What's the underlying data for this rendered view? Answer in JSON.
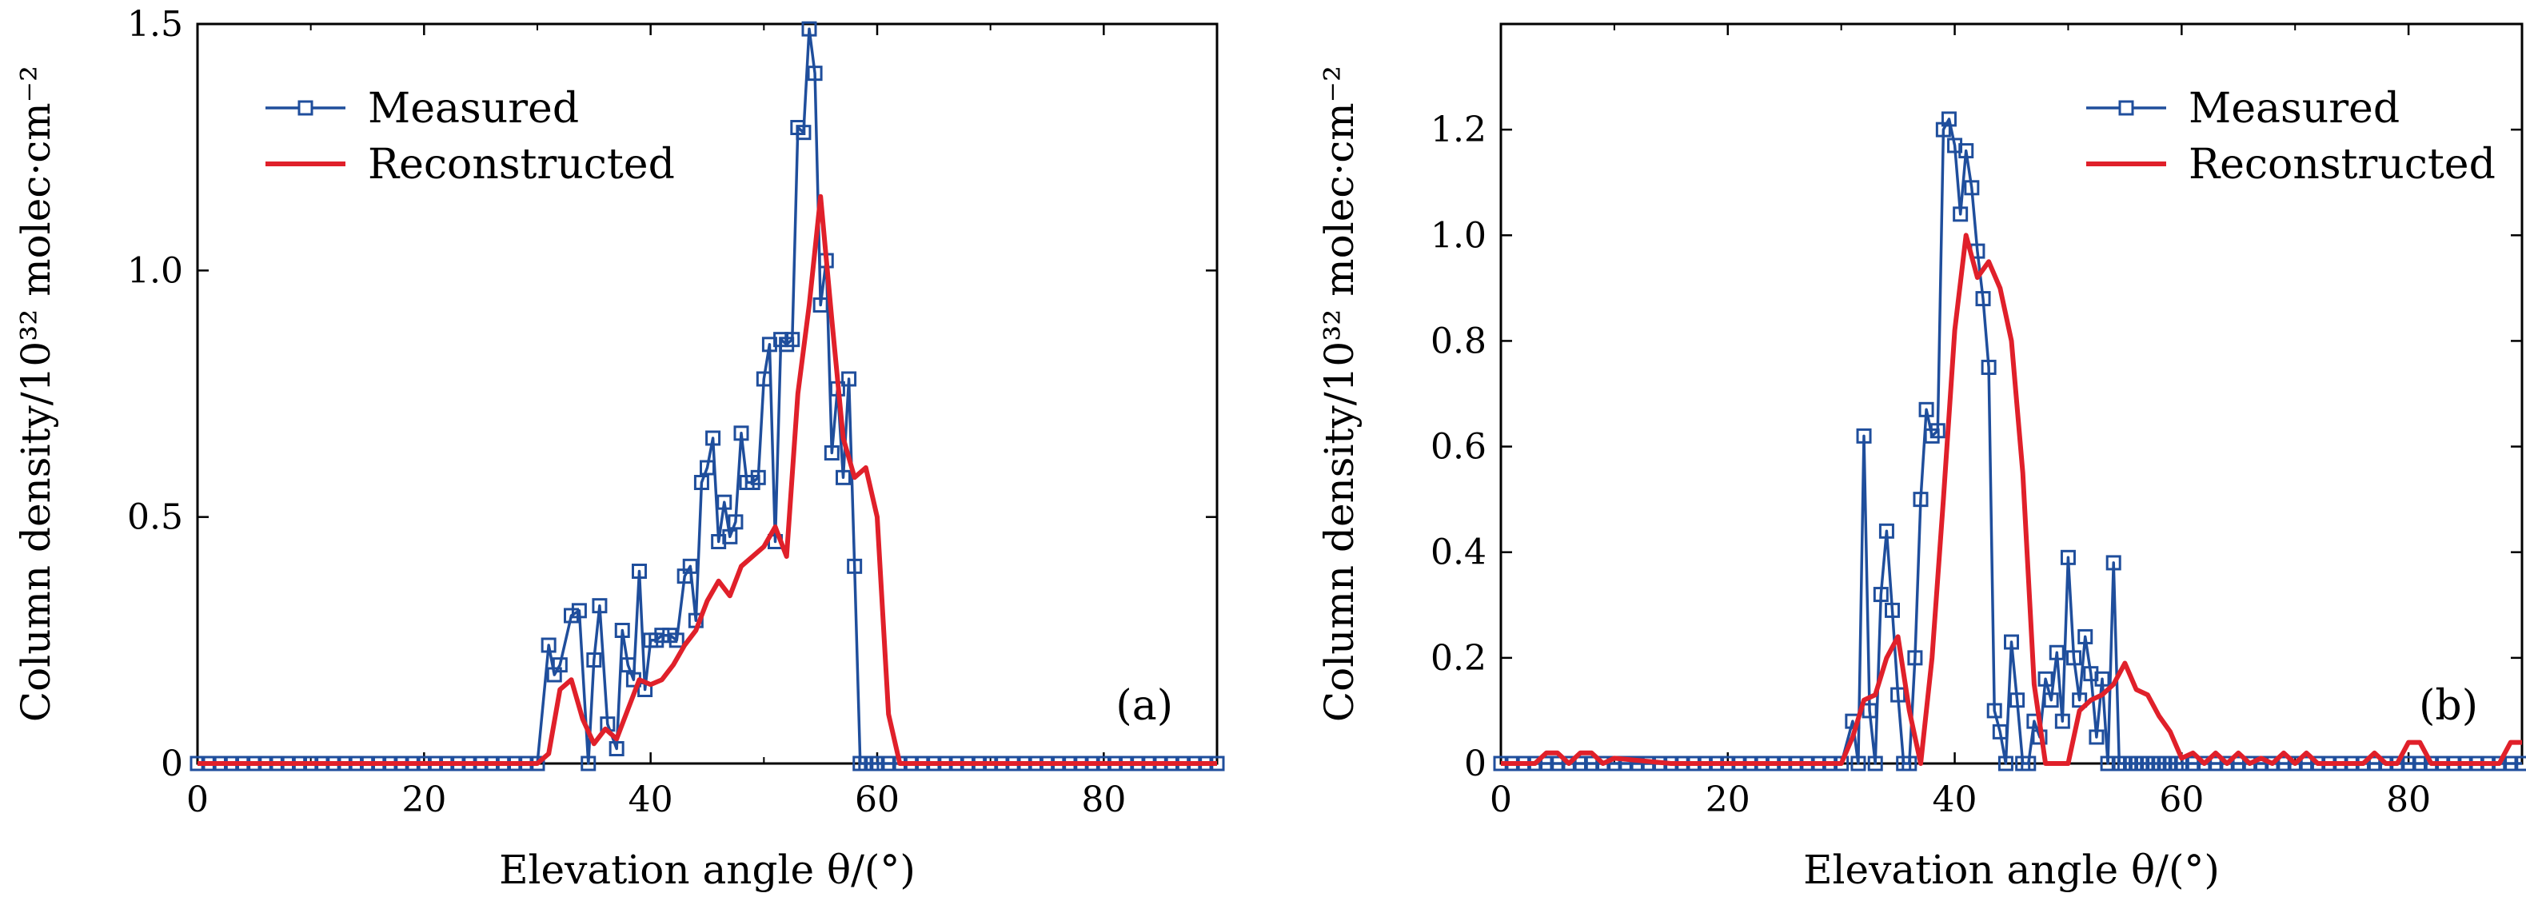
{
  "chart_data": [
    {
      "id": "a",
      "type": "line",
      "panel_label": "(a)",
      "xlabel": "Elevation angle θ/(°)",
      "ylabel": "Column density/10³² molec·cm⁻²",
      "xlim": [
        0,
        90
      ],
      "ylim": [
        0,
        1.5
      ],
      "xticks": [
        0,
        20,
        40,
        60,
        80
      ],
      "xtick_labels": [
        "0",
        "20",
        "40",
        "60",
        "80"
      ],
      "yticks": [
        0,
        0.5,
        1.0,
        1.5
      ],
      "ytick_labels": [
        "0",
        "0.5",
        "1.0",
        "1.5"
      ],
      "legend": {
        "position": "top-left"
      },
      "series": [
        {
          "name": "Measured",
          "color": "#1f4e9c",
          "marker": "square",
          "x": [
            0,
            1,
            2,
            3,
            4,
            5,
            6,
            7,
            8,
            9,
            10,
            11,
            12,
            13,
            14,
            15,
            16,
            17,
            18,
            19,
            20,
            21,
            22,
            23,
            24,
            25,
            26,
            27,
            28,
            29,
            30,
            31,
            31.5,
            32,
            33,
            33.7,
            34.5,
            35,
            35.5,
            36.2,
            37,
            37.5,
            38,
            38.5,
            39,
            39.5,
            40,
            40.5,
            41,
            41.7,
            42.3,
            43,
            43.5,
            44,
            44.5,
            45,
            45.5,
            46,
            46.5,
            47,
            47.5,
            48,
            48.5,
            49,
            49.5,
            50,
            50.5,
            51,
            51.5,
            52,
            52.5,
            53,
            53.5,
            54,
            54.5,
            55,
            55.5,
            56,
            56.5,
            57,
            57.5,
            58,
            58.5,
            59,
            59.5,
            60,
            61,
            62,
            63,
            64,
            65,
            66,
            67,
            68,
            69,
            70,
            71,
            72,
            73,
            74,
            75,
            76,
            77,
            78,
            79,
            80,
            81,
            82,
            83,
            84,
            85,
            86,
            87,
            88,
            89,
            90
          ],
          "y": [
            0,
            0,
            0,
            0,
            0,
            0,
            0,
            0,
            0,
            0,
            0,
            0,
            0,
            0,
            0,
            0,
            0,
            0,
            0,
            0,
            0,
            0,
            0,
            0,
            0,
            0,
            0,
            0,
            0,
            0,
            0,
            0.24,
            0.18,
            0.2,
            0.3,
            0.31,
            0.0,
            0.21,
            0.32,
            0.08,
            0.03,
            0.27,
            0.2,
            0.17,
            0.39,
            0.15,
            0.25,
            0.25,
            0.26,
            0.26,
            0.25,
            0.38,
            0.4,
            0.29,
            0.57,
            0.6,
            0.66,
            0.45,
            0.53,
            0.46,
            0.49,
            0.67,
            0.57,
            0.57,
            0.58,
            0.78,
            0.85,
            0.45,
            0.86,
            0.85,
            0.86,
            1.29,
            1.28,
            1.49,
            1.4,
            0.93,
            1.02,
            0.63,
            0.76,
            0.58,
            0.78,
            0.4,
            0,
            0,
            0,
            0,
            0,
            0,
            0,
            0,
            0,
            0,
            0,
            0,
            0,
            0,
            0,
            0,
            0,
            0,
            0,
            0,
            0,
            0,
            0,
            0,
            0,
            0,
            0,
            0,
            0,
            0,
            0,
            0,
            0,
            0
          ]
        },
        {
          "name": "Reconstructed",
          "color": "#e0202a",
          "marker": "none",
          "x": [
            0,
            10,
            20,
            30,
            31,
            32,
            33,
            34,
            35,
            36,
            37,
            38,
            39,
            40,
            41,
            42,
            43,
            44,
            45,
            46,
            47,
            48,
            49,
            50,
            51,
            52,
            53,
            54,
            55,
            56,
            57,
            58,
            59,
            60,
            61,
            62,
            70,
            80,
            90
          ],
          "y": [
            0,
            0,
            0,
            0,
            0.02,
            0.15,
            0.17,
            0.09,
            0.04,
            0.07,
            0.05,
            0.11,
            0.17,
            0.16,
            0.17,
            0.2,
            0.24,
            0.27,
            0.33,
            0.37,
            0.34,
            0.4,
            0.42,
            0.44,
            0.48,
            0.42,
            0.75,
            0.93,
            1.15,
            0.9,
            0.66,
            0.58,
            0.6,
            0.5,
            0.1,
            0,
            0,
            0,
            0
          ]
        }
      ]
    },
    {
      "id": "b",
      "type": "line",
      "panel_label": "(b)",
      "xlabel": "Elevation angle θ/(°)",
      "ylabel": "Column density/10³² molec·cm⁻²",
      "xlim": [
        0,
        90
      ],
      "ylim": [
        0,
        1.4
      ],
      "xticks": [
        0,
        20,
        40,
        60,
        80
      ],
      "xtick_labels": [
        "0",
        "20",
        "40",
        "60",
        "80"
      ],
      "yticks": [
        0,
        0.2,
        0.4,
        0.6,
        0.8,
        1.0,
        1.2
      ],
      "ytick_labels": [
        "0",
        "0.2",
        "0.4",
        "0.6",
        "0.8",
        "1.0",
        "1.2"
      ],
      "legend": {
        "position": "top-right"
      },
      "series": [
        {
          "name": "Measured",
          "color": "#1f4e9c",
          "marker": "square",
          "x": [
            0,
            1,
            2,
            3,
            4,
            5,
            6,
            7,
            8,
            9,
            10,
            11,
            12,
            13,
            14,
            15,
            16,
            17,
            18,
            19,
            20,
            21,
            22,
            23,
            24,
            25,
            26,
            27,
            28,
            29,
            30,
            31,
            31.5,
            32,
            32.5,
            33,
            33.5,
            34,
            34.5,
            35,
            35.5,
            36,
            36.5,
            37,
            37.5,
            38,
            38.5,
            39,
            39.5,
            40,
            40.5,
            41,
            41.5,
            42,
            42.5,
            43,
            43.5,
            44,
            44.5,
            45,
            45.5,
            46,
            46.5,
            47,
            47.5,
            48,
            48.5,
            49,
            49.5,
            50,
            50.5,
            51,
            51.5,
            52,
            52.5,
            53,
            53.5,
            54,
            54.5,
            55,
            55.5,
            56,
            56.5,
            57,
            57.5,
            58,
            58.5,
            59,
            59.5,
            60,
            61,
            62,
            63,
            64,
            65,
            66,
            67,
            68,
            69,
            70,
            71,
            72,
            73,
            74,
            75,
            76,
            77,
            78,
            79,
            80,
            81,
            82,
            83,
            84,
            85,
            86,
            87,
            88,
            89,
            90
          ],
          "y": [
            0,
            0,
            0,
            0,
            0,
            0,
            0,
            0,
            0,
            0,
            0,
            0,
            0,
            0,
            0,
            0,
            0,
            0,
            0,
            0,
            0,
            0,
            0,
            0,
            0,
            0,
            0,
            0,
            0,
            0,
            0,
            0.08,
            0.0,
            0.62,
            0.1,
            0.0,
            0.32,
            0.44,
            0.29,
            0.13,
            0.0,
            0.0,
            0.2,
            0.5,
            0.67,
            0.62,
            0.63,
            1.2,
            1.22,
            1.17,
            1.04,
            1.16,
            1.09,
            0.97,
            0.88,
            0.75,
            0.1,
            0.06,
            0.0,
            0.23,
            0.12,
            0.0,
            0.0,
            0.08,
            0.05,
            0.16,
            0.12,
            0.21,
            0.08,
            0.39,
            0.2,
            0.12,
            0.24,
            0.17,
            0.05,
            0.16,
            0.0,
            0.38,
            0.0,
            0,
            0,
            0,
            0,
            0,
            0,
            0,
            0,
            0,
            0,
            0,
            0,
            0,
            0,
            0,
            0,
            0,
            0,
            0,
            0,
            0,
            0,
            0,
            0,
            0,
            0,
            0,
            0,
            0,
            0,
            0,
            0,
            0,
            0,
            0,
            0,
            0,
            0,
            0,
            0,
            0
          ]
        },
        {
          "name": "Reconstructed",
          "color": "#e0202a",
          "marker": "none",
          "x": [
            0,
            3,
            4,
            5,
            6,
            7,
            8,
            9,
            10,
            15,
            20,
            25,
            30,
            31,
            32,
            33,
            34,
            35,
            36,
            37,
            38,
            39,
            40,
            41,
            42,
            43,
            44,
            45,
            46,
            47,
            48,
            49,
            50,
            51,
            52,
            53,
            54,
            55,
            56,
            57,
            58,
            59,
            60,
            61,
            62,
            63,
            64,
            65,
            66,
            67,
            68,
            69,
            70,
            71,
            72,
            73,
            75,
            76,
            77,
            78,
            79,
            80,
            81,
            82,
            85,
            88,
            89,
            90
          ],
          "y": [
            0,
            0,
            0.02,
            0.02,
            0.0,
            0.02,
            0.02,
            0.0,
            0.01,
            0.0,
            0.0,
            0.0,
            0.0,
            0.05,
            0.12,
            0.13,
            0.2,
            0.24,
            0.1,
            0.0,
            0.2,
            0.5,
            0.82,
            1.0,
            0.92,
            0.95,
            0.9,
            0.8,
            0.55,
            0.15,
            0.0,
            0.0,
            0.0,
            0.1,
            0.12,
            0.13,
            0.15,
            0.19,
            0.14,
            0.13,
            0.09,
            0.06,
            0.01,
            0.02,
            0.0,
            0.02,
            0.0,
            0.02,
            0.0,
            0.01,
            0.0,
            0.02,
            0.0,
            0.02,
            0.0,
            0.0,
            0.0,
            0.0,
            0.02,
            0.0,
            0.0,
            0.04,
            0.04,
            0.0,
            0.0,
            0.0,
            0.04,
            0.04
          ]
        }
      ]
    }
  ]
}
